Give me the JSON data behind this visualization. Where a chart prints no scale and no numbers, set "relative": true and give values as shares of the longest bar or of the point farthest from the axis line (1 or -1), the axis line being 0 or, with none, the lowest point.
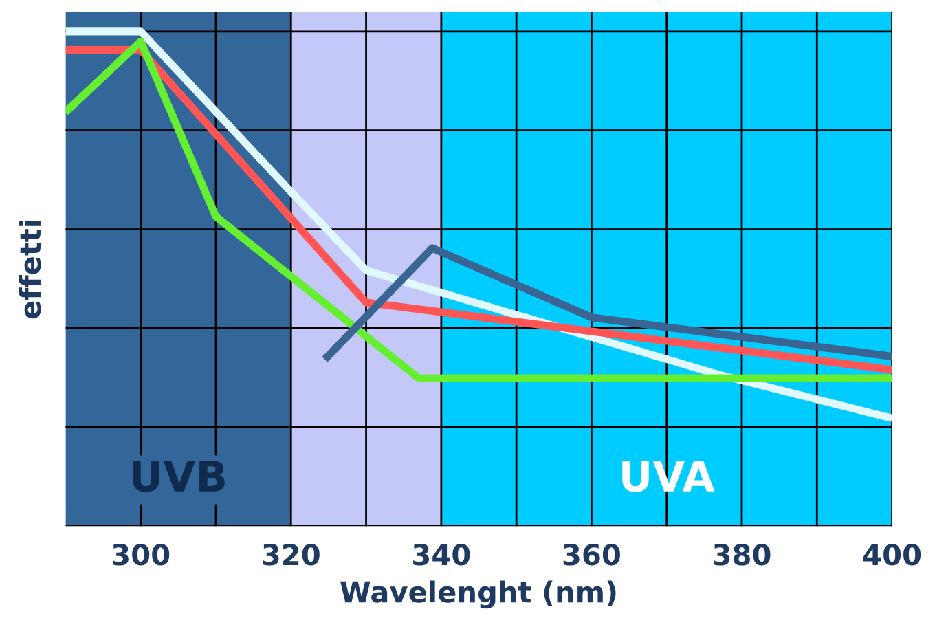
{
  "chart_data": {
    "type": "line",
    "relative": true,
    "xlabel": "Wavelenght (nm)",
    "ylabel": "effetti",
    "xlim": [
      290,
      400
    ],
    "xticks": [
      300,
      {
        "value": 310,
        "label": null
      },
      320,
      {
        "value": 330,
        "label": null
      },
      340,
      {
        "value": 350,
        "label": null
      },
      360,
      {
        "value": 370,
        "label": null
      },
      380,
      {
        "value": 390,
        "label": null
      },
      400
    ],
    "grid": true,
    "tick_labels": "x",
    "line_style": "solid",
    "marker": "none",
    "bands": [
      {
        "axis": "x",
        "from": 290,
        "to": 320,
        "label": "UVB",
        "color": "#336699"
      },
      {
        "axis": "x",
        "from": 320,
        "to": 340,
        "color": "#c4c8f8"
      },
      {
        "axis": "x",
        "from": 340,
        "to": 400,
        "label": "UVA",
        "color": "#00ccff"
      }
    ],
    "series": [
      {
        "color": "#e0f8ff",
        "x": [
          290,
          300,
          320,
          330,
          377,
          400
        ],
        "values": [
          1.0,
          1.0,
          0.676,
          0.517,
          0.306,
          0.218
        ]
      },
      {
        "color": "#ff5555",
        "x": [
          290,
          300,
          330,
          400
        ],
        "values": [
          0.963,
          0.963,
          0.452,
          0.316
        ]
      },
      {
        "color": "#66ee33",
        "x": [
          290,
          300,
          310,
          337,
          400
        ],
        "values": [
          0.837,
          0.98,
          0.626,
          0.299,
          0.299
        ]
      },
      {
        "color": "#3a6491",
        "x": [
          324.5,
          338.8,
          360,
          400
        ],
        "values": [
          0.337,
          0.562,
          0.422,
          0.343
        ]
      }
    ]
  }
}
